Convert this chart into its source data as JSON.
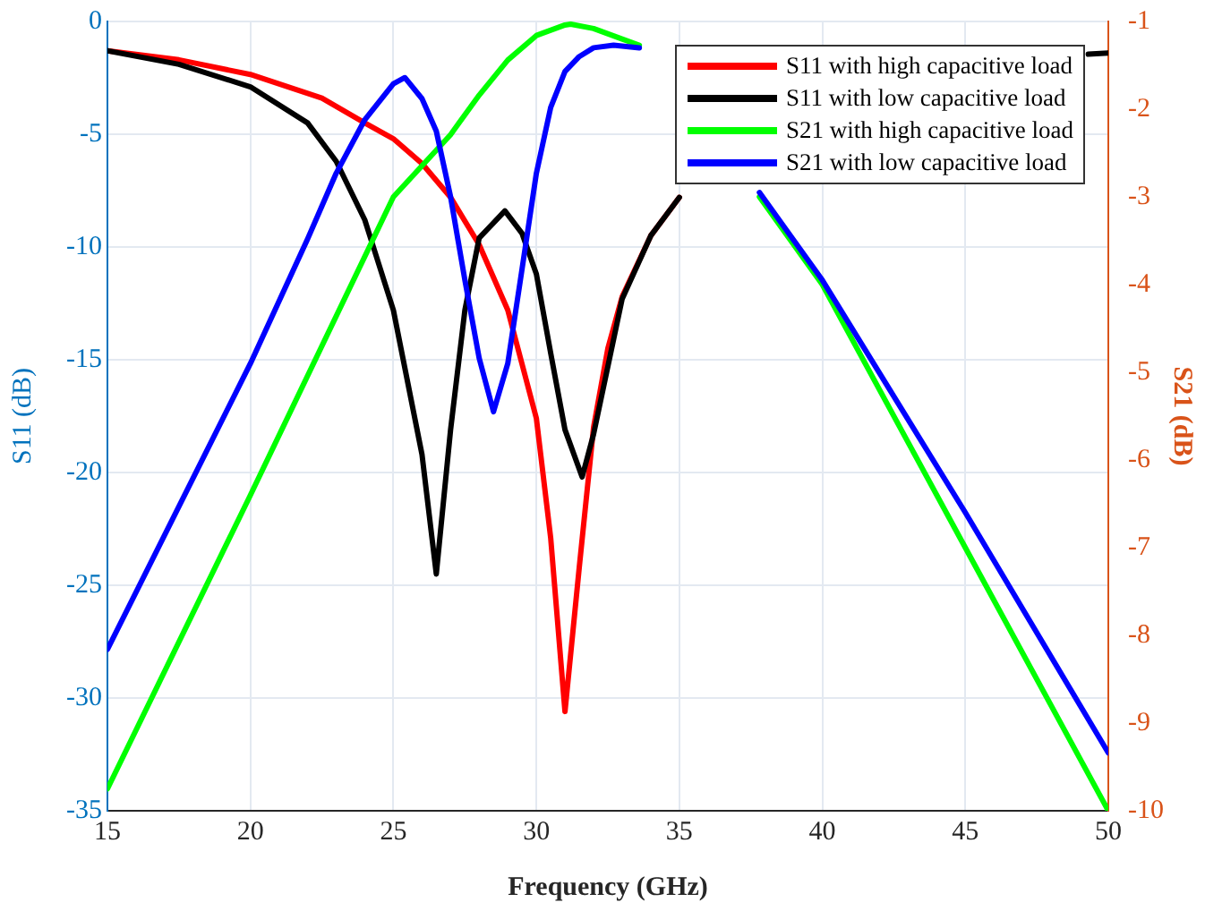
{
  "chart_data": {
    "type": "line",
    "xlabel": "Frequency (GHz)",
    "ylabel": "S11 (dB)",
    "y2label": "S21 (dB)",
    "xlim": [
      15,
      50
    ],
    "xticks": [
      15,
      20,
      25,
      30,
      35,
      40,
      45,
      50
    ],
    "ylim": [
      -35,
      0
    ],
    "yticks": [
      -35,
      -30,
      -25,
      -20,
      -15,
      -10,
      -5,
      0
    ],
    "y2lim": [
      -10,
      -1
    ],
    "y2ticks": [
      -10,
      -9,
      -8,
      -7,
      -6,
      -5,
      -4,
      -3,
      -2,
      -1
    ],
    "grid": true,
    "legend": "top right",
    "marker": "none",
    "line_style": "solid",
    "series": [
      {
        "name": "S11 with high capacitive load",
        "color": "#ff0000",
        "x": [
          15,
          17.5,
          20,
          22.5,
          24,
          25,
          26,
          27,
          28,
          29,
          30,
          30.5,
          31,
          31.5,
          32,
          32.5,
          33,
          34,
          35
        ],
        "values": [
          -1.3,
          -1.7,
          -2.35,
          -3.4,
          -4.5,
          -5.2,
          -6.3,
          -7.8,
          -9.9,
          -12.8,
          -17.6,
          -22.9,
          -30.6,
          -24.2,
          -18,
          -14.5,
          -12.2,
          -9.5,
          -7.8
        ]
      },
      {
        "name": "S11 with low capacitive load",
        "color": "#000000",
        "x": [
          15,
          17.5,
          20,
          22,
          23,
          24,
          25,
          26,
          26.5,
          27,
          27.5,
          28,
          28.9,
          29.5,
          30,
          30.5,
          31,
          31.6,
          32,
          33,
          34,
          35,
          37,
          49.3,
          50
        ],
        "values": [
          -1.3,
          -1.9,
          -2.9,
          -4.5,
          -6.2,
          -8.8,
          -12.8,
          -19.2,
          -24.5,
          -18.1,
          -12.8,
          -9.6,
          -8.4,
          -9.4,
          -11.2,
          -14.7,
          -18.1,
          -20.2,
          -18.3,
          -12.3,
          -9.5,
          -7.8,
          null,
          -1.45,
          -1.4
        ]
      },
      {
        "name": "S21 with high capacitive load",
        "color": "#00ff00",
        "axis": "y2",
        "x": [
          15,
          20,
          25,
          27,
          28,
          29,
          30,
          31,
          31.2,
          32,
          33,
          33.6,
          35,
          37.8,
          40,
          45,
          50
        ],
        "values": [
          -9.75,
          -6.4,
          -3.0,
          -2.29,
          -1.84,
          -1.44,
          -1.16,
          -1.04,
          -1.03,
          -1.08,
          -1.2,
          -1.27,
          null,
          -3.0,
          -4.0,
          -7.0,
          -10
        ]
      },
      {
        "name": "S21 with low capacitive load",
        "color": "#0000ff",
        "axis": "y2",
        "x": [
          15,
          20,
          22,
          23,
          24,
          25,
          25.4,
          26,
          26.5,
          27,
          27.5,
          28,
          28.5,
          29,
          29.5,
          30,
          30.5,
          31,
          31.5,
          32,
          32.7,
          33.6,
          35,
          37.8,
          40,
          45,
          50
        ],
        "values": [
          -8.16,
          -4.9,
          -3.48,
          -2.73,
          -2.12,
          -1.71,
          -1.64,
          -1.88,
          -2.25,
          -3.0,
          -3.95,
          -4.84,
          -5.45,
          -4.9,
          -3.82,
          -2.73,
          -1.98,
          -1.57,
          -1.4,
          -1.3,
          -1.27,
          -1.3,
          null,
          -2.95,
          -3.95,
          -6.6,
          -9.34
        ]
      }
    ]
  }
}
